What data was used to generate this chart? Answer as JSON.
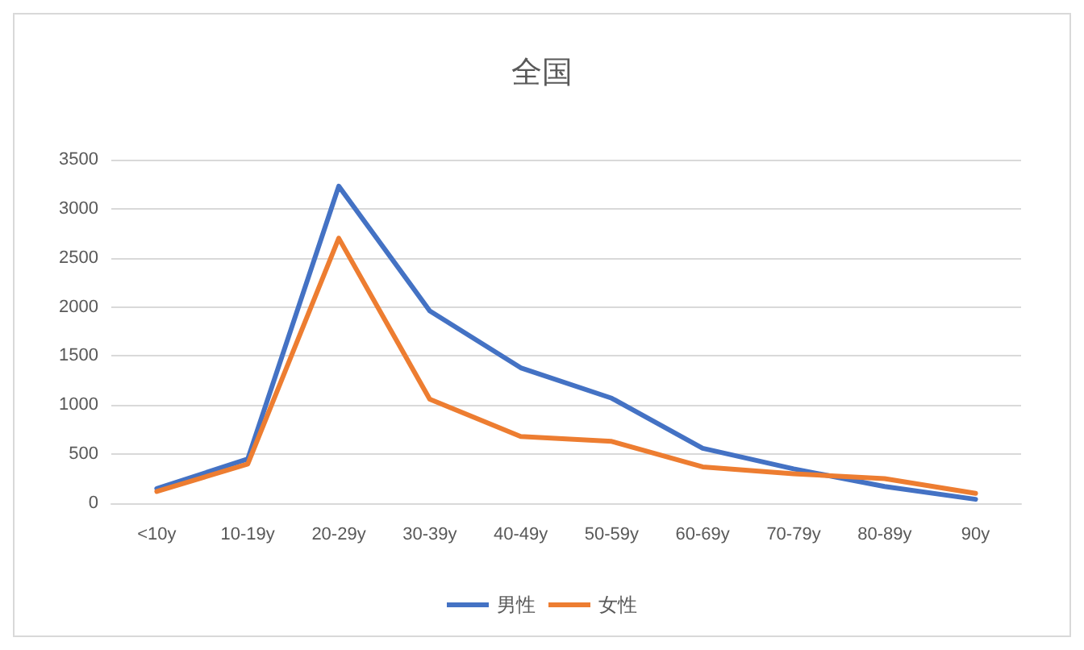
{
  "chart_data": {
    "type": "line",
    "title": "全国",
    "categories": [
      "<10y",
      "10-19y",
      "20-29y",
      "30-39y",
      "40-49y",
      "50-59y",
      "60-69y",
      "70-79y",
      "80-89y",
      "90y"
    ],
    "series": [
      {
        "name": "男性",
        "color": "#4472c4",
        "values": [
          150,
          450,
          3230,
          1960,
          1380,
          1070,
          560,
          350,
          170,
          40
        ]
      },
      {
        "name": "女性",
        "color": "#ed7d31",
        "values": [
          120,
          400,
          2700,
          1060,
          680,
          630,
          370,
          300,
          250,
          100
        ]
      }
    ],
    "ylim": [
      0,
      3500
    ],
    "yticks": [
      0,
      500,
      1000,
      1500,
      2000,
      2500,
      3000,
      3500
    ],
    "grid": "y",
    "legend": "bottom",
    "marker": "none",
    "line_style": "solid"
  }
}
